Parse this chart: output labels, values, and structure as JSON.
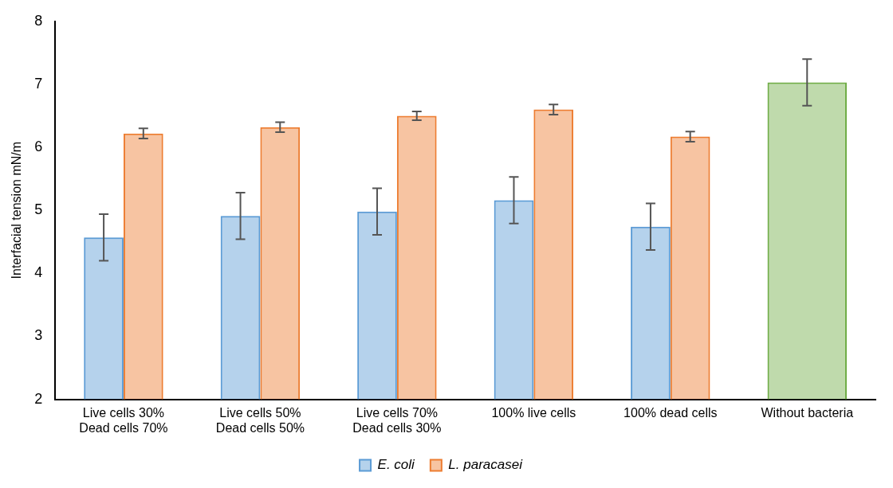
{
  "chart_data": {
    "type": "bar",
    "ylabel": "Interfacial tension mN/m",
    "categories": [
      "Live cells 30%\nDead cells 70%",
      "Live cells 50%\nDead cells 50%",
      "Live cells 70%\nDead cells 30%",
      "100% live cells",
      "100% dead cells",
      "Without bacteria"
    ],
    "series": [
      {
        "name": "E. coli",
        "color": "#5b9bd5",
        "values": [
          4.57,
          4.91,
          4.98,
          5.16,
          4.74,
          null
        ],
        "errors": [
          0.37,
          0.37,
          0.37,
          0.37,
          0.37,
          null
        ]
      },
      {
        "name": "L. paracasei",
        "color": "#ed7d31",
        "values": [
          6.22,
          6.32,
          6.5,
          6.6,
          6.17,
          null
        ],
        "errors": [
          0.08,
          0.08,
          0.07,
          0.08,
          0.08,
          null
        ]
      },
      {
        "color": "#70ad47",
        "values": [
          null,
          null,
          null,
          null,
          null,
          7.03
        ],
        "errors": [
          null,
          null,
          null,
          null,
          null,
          0.37
        ]
      }
    ],
    "ylim": [
      2,
      8
    ],
    "yticks": [
      2,
      3,
      4,
      5,
      6,
      7,
      8
    ],
    "grid": false,
    "legend": "bottom"
  }
}
